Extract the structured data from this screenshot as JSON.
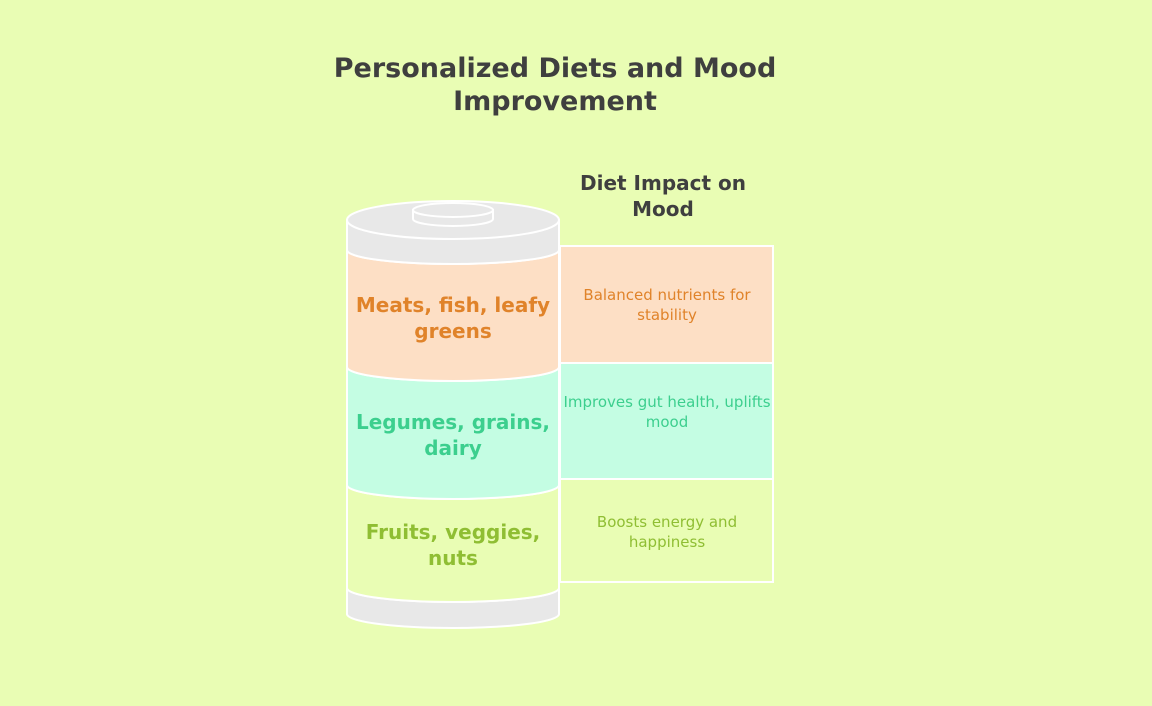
{
  "title": "Personalized Diets and Mood Improvement",
  "impact_header": "Diet Impact on Mood",
  "segments": [
    {
      "label": "Meats, fish, leafy greens",
      "description": "Balanced nutrients for stability",
      "fill": "#fddfc5",
      "text_color": "#e0832a"
    },
    {
      "label": "Legumes, grains, dairy",
      "description": "Improves gut health, uplifts mood",
      "fill": "#c4fde3",
      "text_color": "#3ccf8e"
    },
    {
      "label": "Fruits, veggies, nuts",
      "description": "Boosts energy and happiness",
      "fill": "#e9fdb4",
      "text_color": "#8fbe33"
    }
  ],
  "colors": {
    "background": "#e9fdb4",
    "can_cap": "#e8e8e8",
    "outline": "#ffffff",
    "heading": "#3f3f3f"
  }
}
